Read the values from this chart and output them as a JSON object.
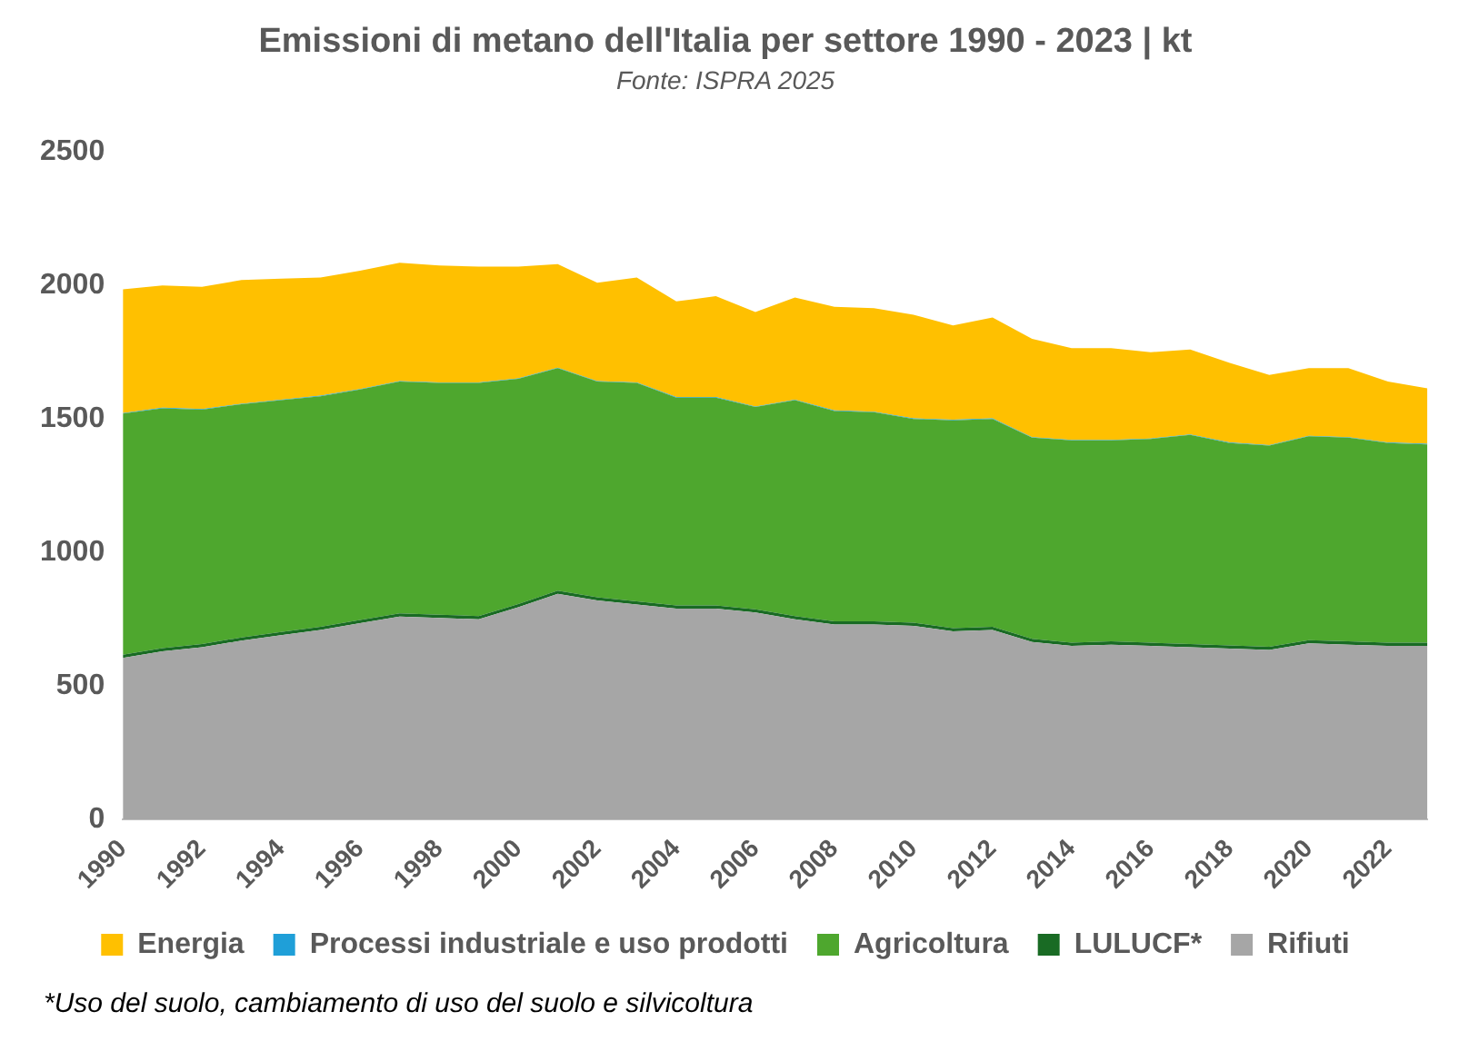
{
  "chart_data": {
    "type": "area",
    "stacked": true,
    "title": "Emissioni di metano dell'Italia per settore 1990 - 2023 | kt",
    "subtitle": "Fonte: ISPRA 2025",
    "categories": [
      "1990",
      null,
      "1992",
      null,
      "1994",
      null,
      "1996",
      null,
      "1998",
      null,
      "2000",
      null,
      "2002",
      null,
      "2004",
      null,
      "2006",
      null,
      "2008",
      null,
      "2010",
      null,
      "2012",
      null,
      "2014",
      null,
      "2016",
      null,
      "2018",
      null,
      "2020",
      null,
      "2022",
      null
    ],
    "ylim": [
      0,
      2500
    ],
    "yticks": [
      0,
      500,
      1000,
      1500,
      2000,
      2500
    ],
    "grid": false,
    "legend": "bottom",
    "marker": "none",
    "annotations": [
      "*Uso del suolo, cambiamento di uso del suolo e silvicoltura"
    ],
    "series": [
      {
        "name": "Rifiuti",
        "color": "#a6a6a6",
        "values": [
          605,
          630,
          645,
          670,
          690,
          710,
          735,
          760,
          755,
          750,
          795,
          845,
          820,
          805,
          790,
          790,
          775,
          750,
          730,
          730,
          725,
          705,
          710,
          665,
          650,
          655,
          650,
          645,
          640,
          635,
          660,
          655,
          650,
          650
        ]
      },
      {
        "name": "LULUCF*",
        "color": "#196b24",
        "values": [
          12,
          12,
          12,
          12,
          12,
          12,
          12,
          12,
          12,
          12,
          12,
          12,
          12,
          12,
          12,
          12,
          12,
          12,
          12,
          12,
          12,
          12,
          12,
          12,
          12,
          12,
          12,
          12,
          12,
          12,
          12,
          12,
          12,
          12
        ]
      },
      {
        "name": "Agricoltura",
        "color": "#4ea72e",
        "values": [
          903,
          898,
          878,
          873,
          868,
          863,
          863,
          868,
          868,
          873,
          843,
          833,
          808,
          818,
          778,
          778,
          758,
          808,
          788,
          783,
          763,
          778,
          778,
          753,
          758,
          753,
          763,
          783,
          758,
          753,
          763,
          763,
          748,
          743
        ]
      },
      {
        "name": "Processi industriale e uso prodotti",
        "color": "#1f9fd8",
        "values": [
          2,
          2,
          2,
          2,
          2,
          2,
          2,
          2,
          2,
          2,
          2,
          2,
          2,
          2,
          2,
          2,
          2,
          2,
          2,
          2,
          2,
          2,
          2,
          2,
          2,
          2,
          2,
          2,
          2,
          2,
          2,
          2,
          2,
          2
        ]
      },
      {
        "name": "Energia",
        "color": "#ffc000",
        "values": [
          463,
          458,
          458,
          463,
          453,
          443,
          443,
          443,
          438,
          433,
          418,
          388,
          368,
          393,
          358,
          378,
          353,
          383,
          388,
          388,
          388,
          353,
          378,
          368,
          343,
          343,
          323,
          318,
          298,
          263,
          253,
          258,
          228,
          208
        ]
      }
    ]
  }
}
